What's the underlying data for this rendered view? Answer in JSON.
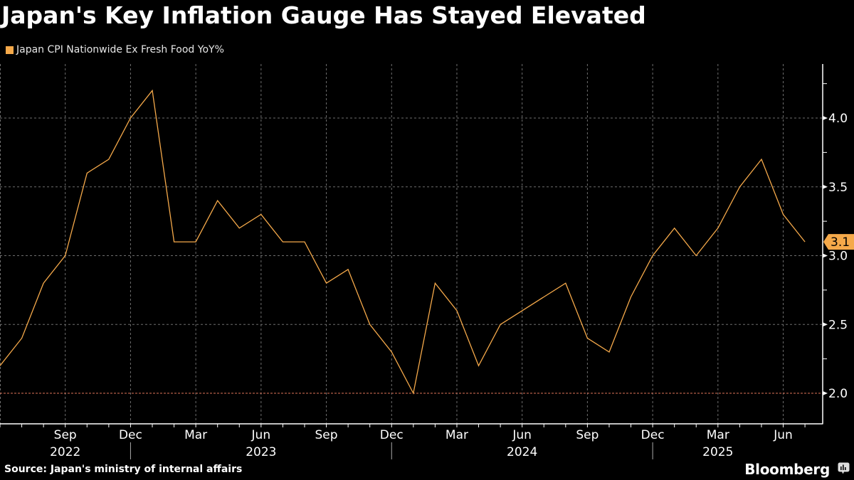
{
  "chart_data": {
    "type": "line",
    "title": "Japan's Key Inflation Gauge Has Stayed Elevated",
    "series": [
      {
        "name": "Japan CPI Nationwide Ex Fresh Food YoY%",
        "color": "#f5a94a",
        "x": [
          "2022-06",
          "2022-07",
          "2022-08",
          "2022-09",
          "2022-10",
          "2022-11",
          "2022-12",
          "2023-01",
          "2023-02",
          "2023-03",
          "2023-04",
          "2023-05",
          "2023-06",
          "2023-07",
          "2023-08",
          "2023-09",
          "2023-10",
          "2023-11",
          "2023-12",
          "2024-01",
          "2024-02",
          "2024-03",
          "2024-04",
          "2024-05",
          "2024-06",
          "2024-07",
          "2024-08",
          "2024-09",
          "2024-10",
          "2024-11",
          "2024-12",
          "2025-01",
          "2025-02",
          "2025-03",
          "2025-04",
          "2025-05",
          "2025-06",
          "2025-07"
        ],
        "values": [
          2.2,
          2.4,
          2.8,
          3.0,
          3.6,
          3.7,
          4.0,
          4.2,
          3.1,
          3.1,
          3.4,
          3.2,
          3.3,
          3.1,
          3.1,
          2.8,
          2.9,
          2.5,
          2.3,
          2.0,
          2.8,
          2.6,
          2.2,
          2.5,
          2.6,
          2.7,
          2.8,
          2.4,
          2.3,
          2.7,
          3.0,
          3.2,
          3.0,
          3.2,
          3.5,
          3.7,
          3.3,
          3.1
        ]
      }
    ],
    "last_value_label": "3.1",
    "ylim": [
      1.9,
      4.4
    ],
    "yticks": [
      {
        "value": 2.0,
        "label": "2.0"
      },
      {
        "value": 2.5,
        "label": "2.5"
      },
      {
        "value": 3.0,
        "label": "3.0"
      },
      {
        "value": 3.5,
        "label": "3.5"
      },
      {
        "value": 4.0,
        "label": "4.0"
      }
    ],
    "yminor": [
      2.25,
      2.75,
      3.25,
      3.75,
      4.25
    ],
    "xticks": [
      {
        "index": 3,
        "label": "Sep"
      },
      {
        "index": 6,
        "label": "Dec"
      },
      {
        "index": 9,
        "label": "Mar"
      },
      {
        "index": 12,
        "label": "Jun"
      },
      {
        "index": 15,
        "label": "Sep"
      },
      {
        "index": 18,
        "label": "Dec"
      },
      {
        "index": 21,
        "label": "Mar"
      },
      {
        "index": 24,
        "label": "Jun"
      },
      {
        "index": 27,
        "label": "Sep"
      },
      {
        "index": 30,
        "label": "Dec"
      },
      {
        "index": 33,
        "label": "Mar"
      },
      {
        "index": 36,
        "label": "Jun"
      }
    ],
    "year_labels": [
      {
        "index": 3,
        "label": "2022"
      },
      {
        "index": 12,
        "label": "2023"
      },
      {
        "index": 24,
        "label": "2024"
      },
      {
        "index": 33,
        "label": "2025"
      }
    ],
    "year_dividers": [
      6,
      18,
      30
    ],
    "reference_line": {
      "value": 2.0,
      "color": "#e0735a"
    },
    "grid": true,
    "legend_position": "top-left",
    "xlabel": "",
    "ylabel": ""
  },
  "legend": {
    "label": "Japan CPI Nationwide Ex Fresh Food YoY%",
    "color": "#f5a94a"
  },
  "footer": {
    "source": "Source: Japan's ministry of internal affairs",
    "brand": "Bloomberg"
  },
  "colors": {
    "background": "#000000",
    "line": "#f5a94a",
    "grid": "#6e6e6e",
    "axis": "#ffffff"
  }
}
